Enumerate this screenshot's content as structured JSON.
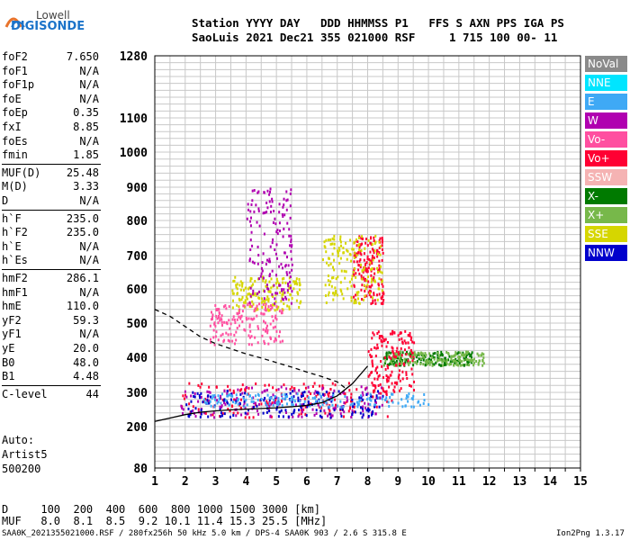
{
  "logo": {
    "brand_top": "Lowell",
    "brand_main": "DIGISONDE"
  },
  "header": {
    "line1": "Station YYYY DAY   DDD HHMMSS P1   FFS S AXN PPS IGA PS",
    "line2": "SaoLuis 2021 Dec21 355 021000 RSF     1 715 100 00- 11"
  },
  "params": [
    {
      "k": "foF2",
      "v": "7.650"
    },
    {
      "k": "foF1",
      "v": "N/A"
    },
    {
      "k": "foF1p",
      "v": "N/A"
    },
    {
      "k": "foE",
      "v": "N/A"
    },
    {
      "k": "foEp",
      "v": "0.35"
    },
    {
      "k": "fxI",
      "v": "8.85"
    },
    {
      "k": "foEs",
      "v": "N/A"
    },
    {
      "k": "fmin",
      "v": "1.85"
    },
    {
      "k": "MUF(D)",
      "v": "25.48"
    },
    {
      "k": "M(D)",
      "v": "3.33"
    },
    {
      "k": "D",
      "v": "N/A"
    },
    {
      "k": "h`F",
      "v": "235.0"
    },
    {
      "k": "h`F2",
      "v": "235.0"
    },
    {
      "k": "h`E",
      "v": "N/A"
    },
    {
      "k": "h`Es",
      "v": "N/A"
    },
    {
      "k": "hmF2",
      "v": "286.1"
    },
    {
      "k": "hmF1",
      "v": "N/A"
    },
    {
      "k": "hmE",
      "v": "110.0"
    },
    {
      "k": "yF2",
      "v": "59.3"
    },
    {
      "k": "yF1",
      "v": "N/A"
    },
    {
      "k": "yE",
      "v": "20.0"
    },
    {
      "k": "B0",
      "v": "48.0"
    },
    {
      "k": "B1",
      "v": "4.48"
    },
    {
      "k": "C-level",
      "v": "44"
    }
  ],
  "notes": {
    "auto": "Auto:",
    "artist": "Artist5",
    "code": "500200"
  },
  "legend": [
    {
      "label": "NoVal",
      "color": "#8a8a8a"
    },
    {
      "label": "NNE",
      "color": "#00e5ff"
    },
    {
      "label": "E",
      "color": "#3fa9f5"
    },
    {
      "label": "W",
      "color": "#b000b0"
    },
    {
      "label": "Vo-",
      "color": "#ff4fa0"
    },
    {
      "label": "Vo+",
      "color": "#ff0033"
    },
    {
      "label": "SSW",
      "color": "#f5b3b3"
    },
    {
      "label": "X-",
      "color": "#007a00"
    },
    {
      "label": "X+",
      "color": "#77b84a"
    },
    {
      "label": "SSE",
      "color": "#d6d600"
    },
    {
      "label": "NNW",
      "color": "#0000cc"
    }
  ],
  "footer": {
    "d_line": "D     100  200  400  600  800 1000 1500 3000 [km]",
    "muf_line": "MUF   8.0  8.1  8.5  9.2 10.1 11.4 15.3 25.5 [MHz]",
    "file_line": "SAA0K_2021355021000.RSF / 280fx256h 50 kHz 5.0 km / DPS-4 SAA0K 903 / 2.6 S 315.8 E",
    "version": "Ion2Png 1.3.17"
  },
  "chart_data": {
    "type": "scatter",
    "title": "",
    "xlabel": "",
    "ylabel": "",
    "xlim": [
      1,
      15
    ],
    "x_ticks": [
      1,
      2,
      3,
      4,
      5,
      6,
      7,
      8,
      9,
      10,
      11,
      12,
      13,
      14,
      15
    ],
    "ylim": [
      80,
      1280
    ],
    "y_ticks": [
      80,
      200,
      300,
      400,
      500,
      600,
      700,
      800,
      900,
      1000,
      1100,
      1280
    ],
    "grid": true,
    "series": [
      {
        "name": "profile",
        "color": "#000000",
        "style": "solid",
        "x": [
          1.0,
          1.5,
          2.0,
          2.5,
          3.0,
          3.5,
          4.0,
          4.5,
          5.0,
          5.5,
          6.0,
          6.5,
          7.0,
          7.5,
          8.0
        ],
        "y": [
          215,
          225,
          235,
          242,
          246,
          249,
          251,
          253,
          255,
          258,
          262,
          270,
          290,
          325,
          375
        ]
      },
      {
        "name": "trace",
        "color": "#000000",
        "style": "dashed",
        "x": [
          1.0,
          1.5,
          2.0,
          2.5,
          3.0,
          3.5,
          4.0,
          4.5,
          5.0,
          5.5,
          6.0,
          6.5,
          7.0,
          7.3
        ],
        "y": [
          540,
          520,
          490,
          460,
          440,
          425,
          410,
          398,
          385,
          372,
          358,
          345,
          330,
          310
        ]
      }
    ],
    "echo_clusters": [
      {
        "color": "#ff0033",
        "x": [
          1.8,
          8.8
        ],
        "y": [
          230,
          330
        ]
      },
      {
        "color": "#b000b0",
        "x": [
          1.8,
          8.5
        ],
        "y": [
          230,
          320
        ]
      },
      {
        "color": "#0000cc",
        "x": [
          2.0,
          8.5
        ],
        "y": [
          230,
          310
        ]
      },
      {
        "color": "#007a00",
        "x": [
          8.5,
          11.5
        ],
        "y": [
          380,
          420
        ]
      },
      {
        "color": "#77b84a",
        "x": [
          8.5,
          11.8
        ],
        "y": [
          380,
          420
        ]
      },
      {
        "color": "#d6d600",
        "x": [
          3.5,
          5.8
        ],
        "y": [
          540,
          640
        ]
      },
      {
        "color": "#ff4fa0",
        "x": [
          2.8,
          5.2
        ],
        "y": [
          440,
          560
        ]
      },
      {
        "color": "#b000b0",
        "x": [
          4.0,
          5.5
        ],
        "y": [
          560,
          900
        ]
      },
      {
        "color": "#ff0033",
        "x": [
          7.5,
          8.5
        ],
        "y": [
          560,
          760
        ]
      },
      {
        "color": "#d6d600",
        "x": [
          6.5,
          8.5
        ],
        "y": [
          560,
          760
        ]
      },
      {
        "color": "#ff0033",
        "x": [
          8.0,
          9.5
        ],
        "y": [
          300,
          480
        ]
      },
      {
        "color": "#3fa9f5",
        "x": [
          2.5,
          10.0
        ],
        "y": [
          260,
          300
        ]
      }
    ]
  }
}
